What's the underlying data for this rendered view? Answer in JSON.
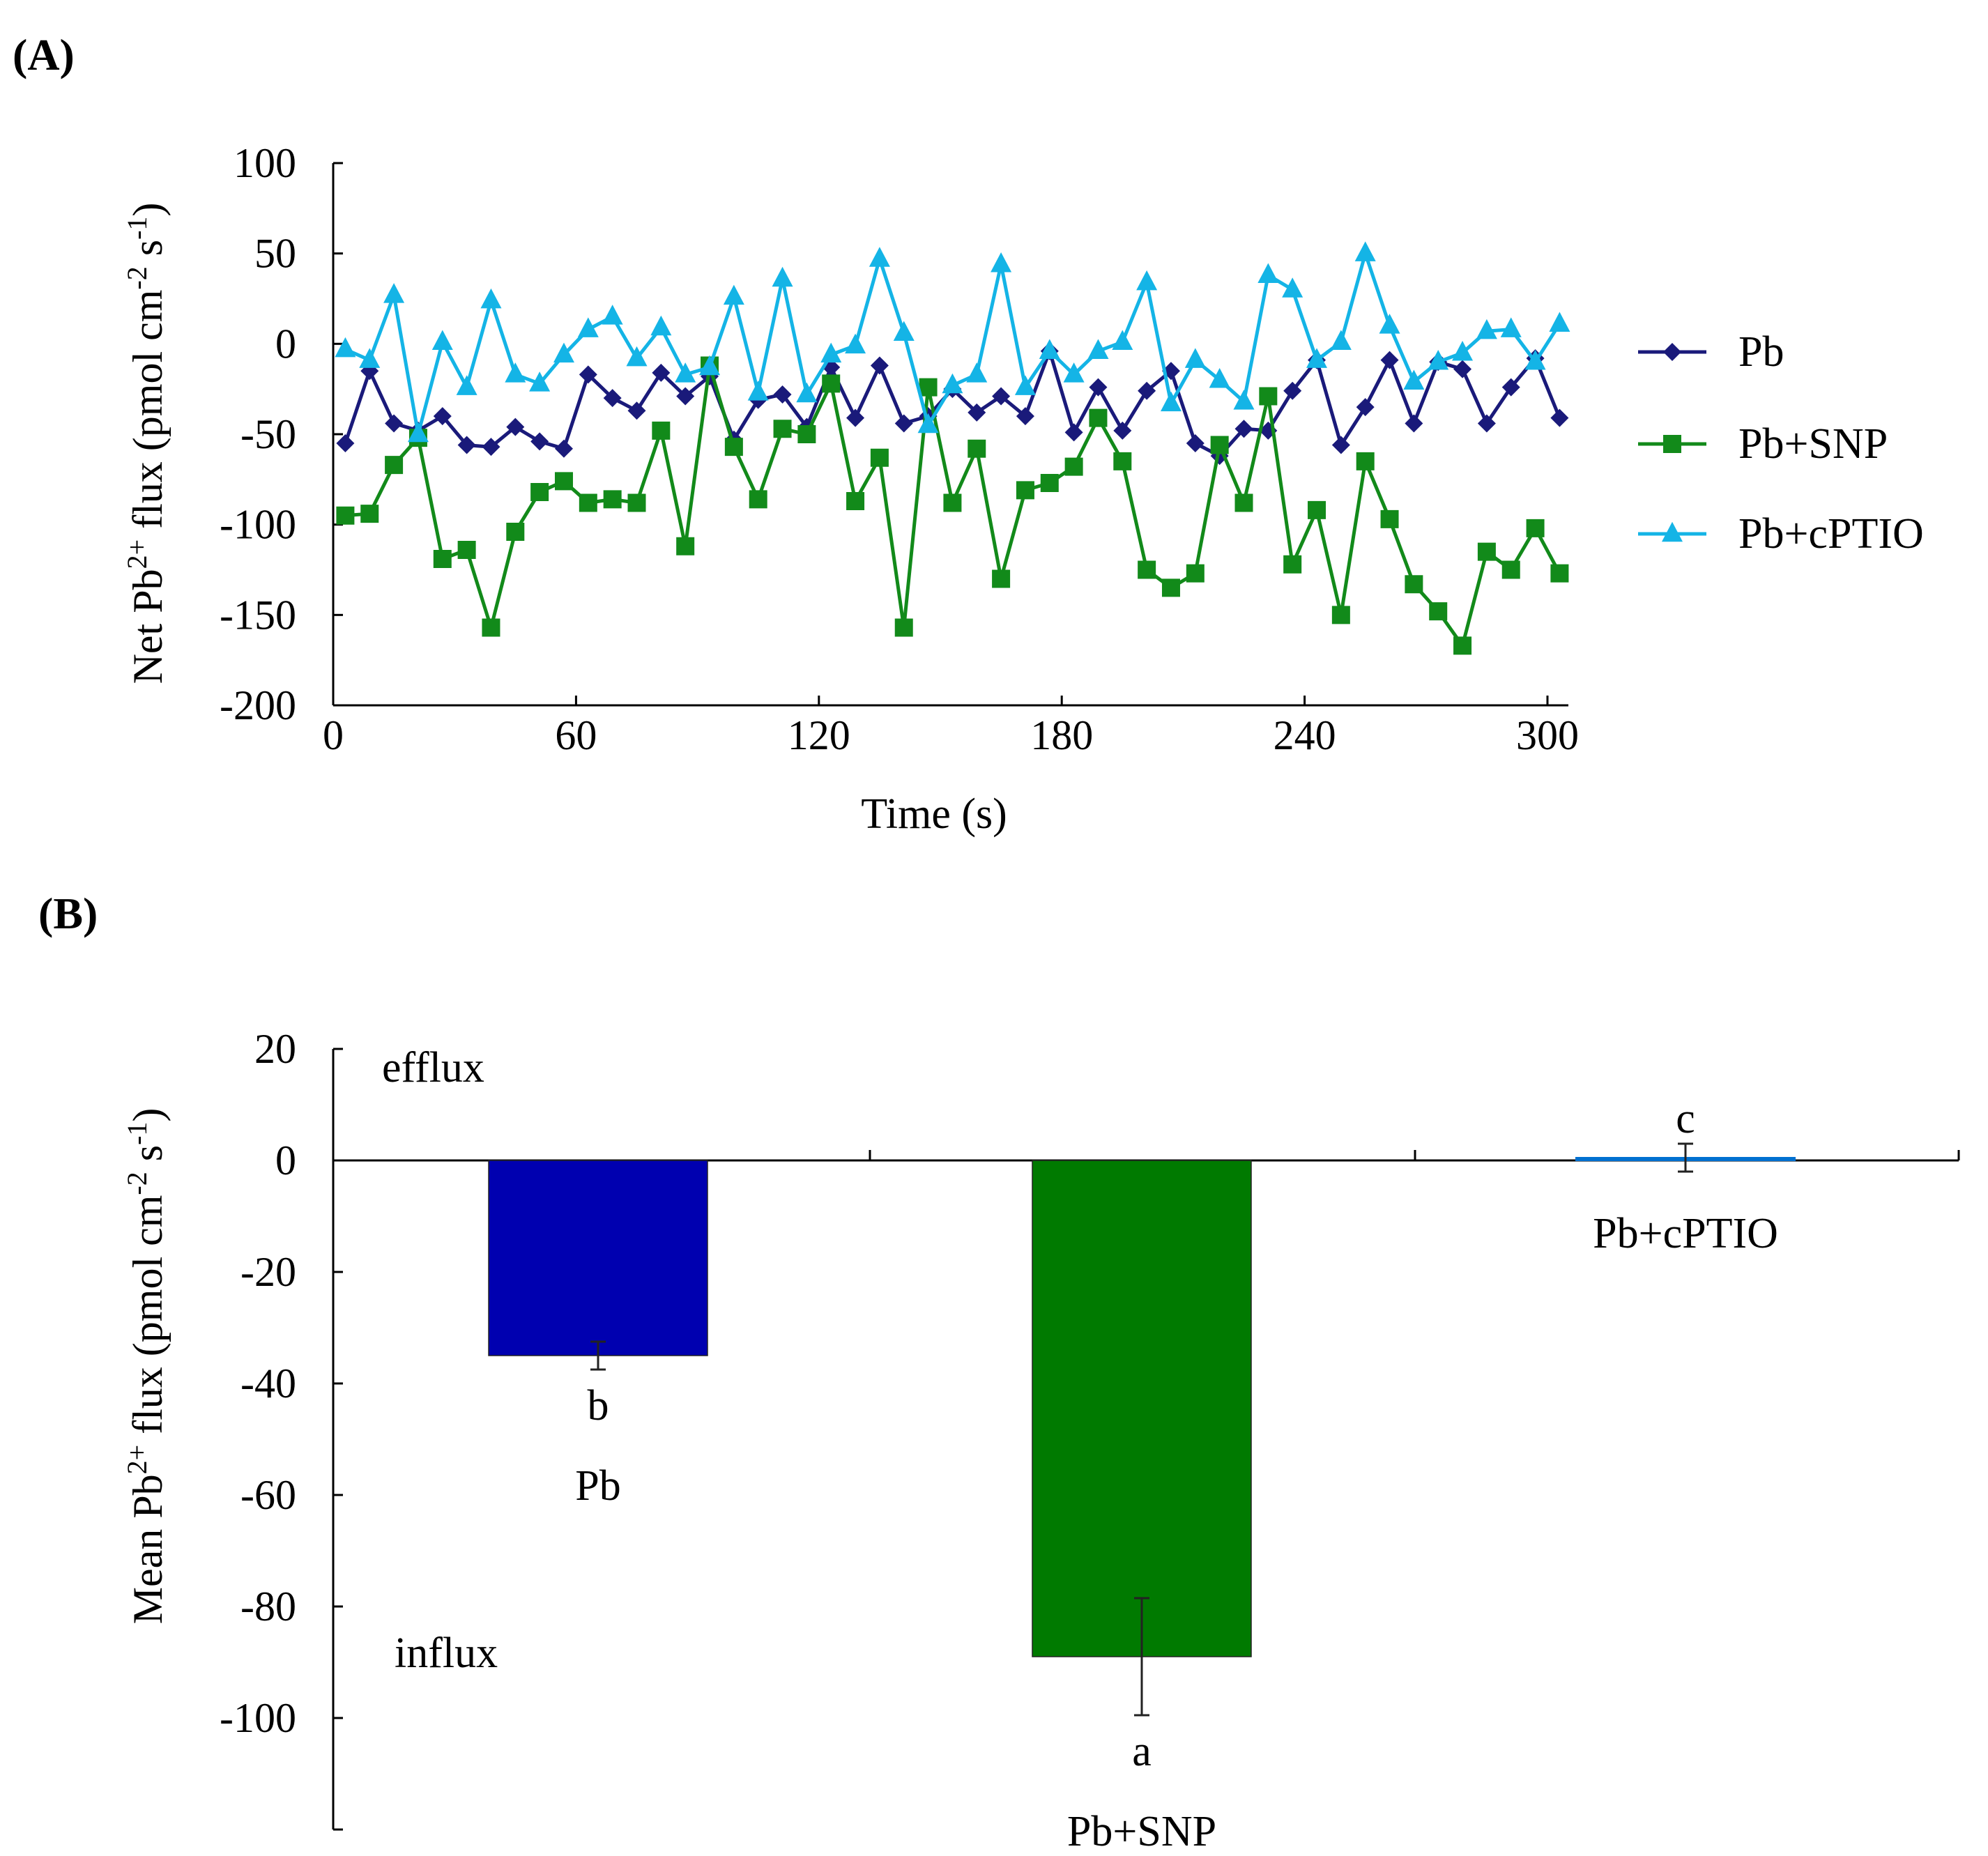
{
  "colors": {
    "pb": "#1a1a7a",
    "pb_snp": "#128a1a",
    "pb_cptio": "#14b4e6",
    "bar_pb": "#0000b0",
    "bar_snp": "#007a00",
    "bar_cptio": "#0070d0",
    "axis": "#000000"
  },
  "chart_data": [
    {
      "panel": "(A)",
      "type": "line",
      "xlabel": "Time (s)",
      "ylabel_parts": [
        "Net Pb",
        "2+",
        " flux (pmol cm",
        "-2",
        " s",
        "-1",
        ")"
      ],
      "xlim": [
        0,
        305
      ],
      "ylim": [
        -200,
        100
      ],
      "xticks": [
        0,
        60,
        120,
        180,
        240,
        300
      ],
      "yticks": [
        100,
        50,
        0,
        -50,
        -100,
        -150,
        -200
      ],
      "legend_position": "right",
      "x": [
        3,
        9,
        15,
        21,
        27,
        33,
        39,
        45,
        51,
        57,
        63,
        69,
        75,
        81,
        87,
        93,
        99,
        105,
        111,
        117,
        123,
        129,
        135,
        141,
        147,
        153,
        159,
        165,
        171,
        177,
        183,
        189,
        195,
        201,
        207,
        213,
        219,
        225,
        231,
        237,
        243,
        249,
        255,
        261,
        267,
        273,
        279,
        285,
        291,
        297,
        303
      ],
      "series": [
        {
          "name": "Pb",
          "marker": "diamond",
          "values": [
            -55,
            -15,
            -44,
            -48,
            -40,
            -56,
            -57,
            -46,
            -54,
            -58,
            -17,
            -30,
            -37,
            -16,
            -29,
            -18,
            -53,
            -31,
            -28,
            -46,
            -13,
            -41,
            -12,
            -44,
            -40,
            -25,
            -38,
            -29,
            -40,
            -4,
            -49,
            -24,
            -48,
            -26,
            -15,
            -55,
            -62,
            -47,
            -48,
            -26,
            -9,
            -56,
            -35,
            -9,
            -44,
            -10,
            -14,
            -44,
            -24,
            -8,
            -41
          ]
        },
        {
          "name": "Pb+SNP",
          "marker": "square",
          "values": [
            -95,
            -94,
            -67,
            -52,
            -119,
            -114,
            -157,
            -104,
            -82,
            -76,
            -88,
            -86,
            -88,
            -48,
            -112,
            -12,
            -57,
            -86,
            -47,
            -50,
            -22,
            -87,
            -63,
            -157,
            -24,
            -88,
            -58,
            -130,
            -81,
            -77,
            -68,
            -41,
            -65,
            -125,
            -135,
            -127,
            -56,
            -88,
            -29,
            -122,
            -92,
            -150,
            -65,
            -97,
            -133,
            -148,
            -167,
            -115,
            -125,
            -102,
            -127
          ]
        },
        {
          "name": "Pb+cPTIO",
          "marker": "triangle",
          "values": [
            -3,
            -9,
            27,
            -50,
            1,
            -24,
            24,
            -17,
            -22,
            -6,
            8,
            15,
            -8,
            9,
            -17,
            -13,
            26,
            -27,
            36,
            -28,
            -6,
            -1,
            47,
            6,
            -45,
            -23,
            -17,
            44,
            -24,
            -4,
            -17,
            -4,
            1,
            34,
            -33,
            -9,
            -20,
            -32,
            38,
            30,
            -9,
            1,
            50,
            10,
            -21,
            -10,
            -5,
            7,
            8,
            -10,
            11
          ]
        }
      ]
    },
    {
      "panel": "(B)",
      "type": "bar",
      "ylabel_parts": [
        "Mean Pb",
        "2+",
        " flux (pmol cm",
        "-2",
        " s",
        "-1",
        ")"
      ],
      "ylim": [
        -120,
        20
      ],
      "yticks": [
        20,
        0,
        -20,
        -40,
        -60,
        -80,
        -100
      ],
      "categories": [
        "Pb",
        "Pb+SNP",
        "Pb+cPTIO"
      ],
      "values": [
        -35,
        -89,
        0.5
      ],
      "errors": [
        2.5,
        10.5,
        2.5
      ],
      "significance": [
        "b",
        "a",
        "c"
      ],
      "annotations": {
        "top": "efflux",
        "bottom": "influx"
      }
    }
  ]
}
